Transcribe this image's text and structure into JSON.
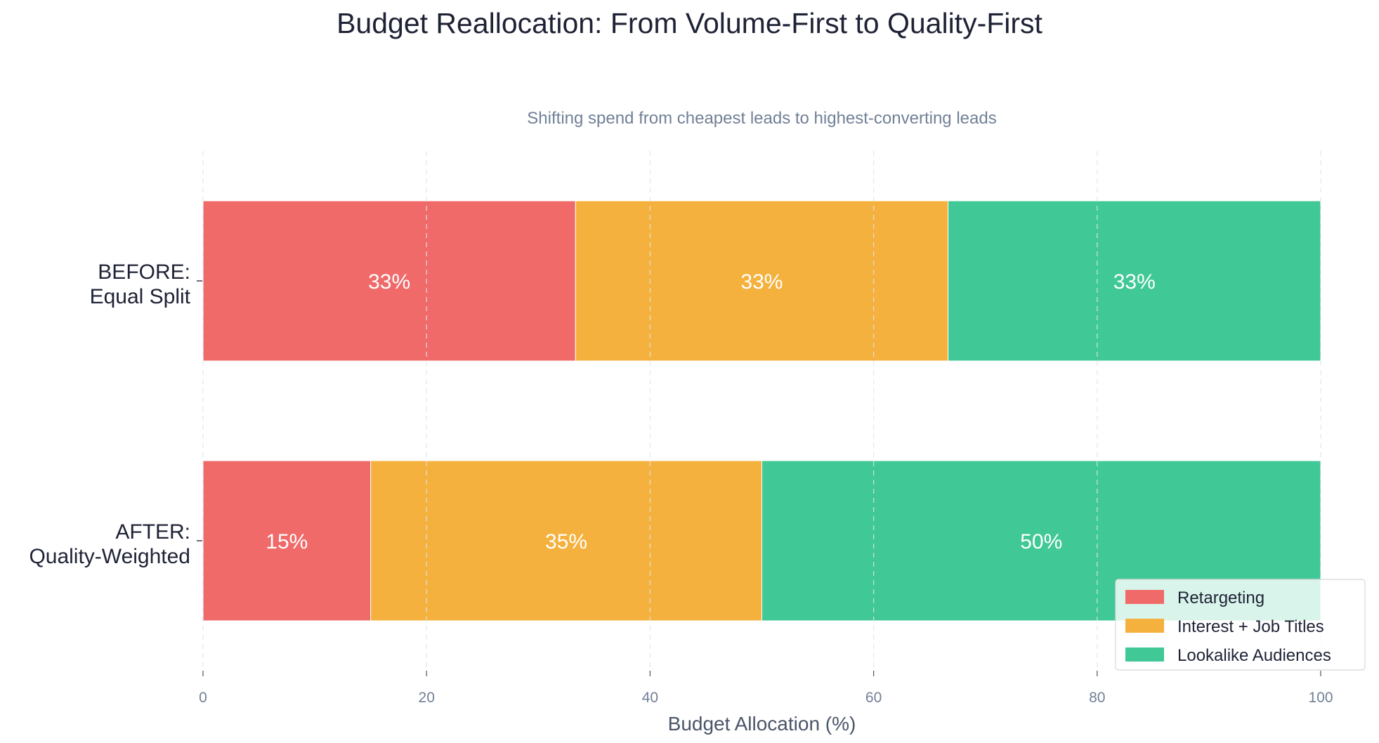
{
  "chart_data": {
    "type": "bar",
    "orientation": "horizontal",
    "stacked": true,
    "title": "Budget Reallocation: From Volume-First to Quality-First",
    "subtitle": "Shifting spend from cheapest leads to highest-converting leads",
    "xlabel": "Budget Allocation (%)",
    "ylabel": "",
    "xlim": [
      0,
      100
    ],
    "x_ticks": [
      0,
      20,
      40,
      60,
      80,
      100
    ],
    "grid": "vertical dashed",
    "legend_position": "bottom-right",
    "categories": [
      {
        "lines": [
          "BEFORE:",
          "Equal Split"
        ]
      },
      {
        "lines": [
          "AFTER:",
          "Quality-Weighted"
        ]
      }
    ],
    "series": [
      {
        "name": "Retargeting",
        "color": "#f06a6a",
        "values": [
          33.33,
          15
        ],
        "labels": [
          "33%",
          "15%"
        ]
      },
      {
        "name": "Interest + Job Titles",
        "color": "#f5b13d",
        "values": [
          33.33,
          35
        ],
        "labels": [
          "33%",
          "35%"
        ]
      },
      {
        "name": "Lookalike Audiences",
        "color": "#40c896",
        "values": [
          33.34,
          50
        ],
        "labels": [
          "33%",
          "50%"
        ]
      }
    ]
  }
}
